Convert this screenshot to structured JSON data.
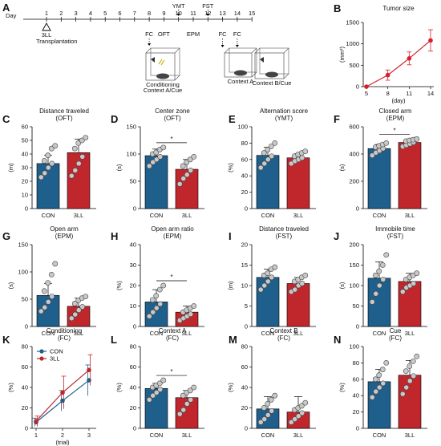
{
  "colors": {
    "con": "#1f5f8b",
    "ll": "#c0272d",
    "dot": "#c8c8c8",
    "tumor": "#d6202a"
  },
  "timeline": {
    "label": "A",
    "day_label": "Day",
    "days": [
      "1",
      "2",
      "3",
      "4",
      "5",
      "6",
      "7",
      "8",
      "9",
      "10",
      "11",
      "12",
      "13",
      "14",
      "15"
    ],
    "above": [
      {
        "day": 10,
        "text": "YMT"
      },
      {
        "day": 12,
        "text": "FST"
      }
    ],
    "below": [
      {
        "day": 8,
        "text": "FC"
      },
      {
        "day": 9,
        "text": "OFT"
      },
      {
        "day": 11,
        "text": "EPM"
      },
      {
        "day": 13,
        "text": "FC"
      },
      {
        "day": 14,
        "text": "FC"
      }
    ],
    "injection_label": "3LL",
    "injection_sub": "Transplantation",
    "boxes": [
      {
        "text1": "Conditioning",
        "text2": "Context A/Cue"
      },
      {
        "text1": "Context A",
        "text2": ""
      },
      {
        "text1": "Context B/Cue",
        "text2": ""
      }
    ]
  },
  "charts": [
    {
      "id": "B",
      "type": "line",
      "title": "Tumor size",
      "ylabel": "(mm³)",
      "xlabel": "(day)",
      "x": [
        5,
        8,
        11,
        14
      ],
      "y": [
        0,
        270,
        660,
        1080
      ],
      "err": [
        0,
        120,
        150,
        250
      ],
      "ylim": [
        0,
        1500
      ],
      "yticks": [
        "0",
        "500",
        "1000",
        "1500"
      ]
    },
    {
      "id": "C",
      "type": "bar",
      "title": "Distance traveled",
      "subtitle": "(OFT)",
      "ylabel": "(m)",
      "ylim": [
        0,
        60
      ],
      "yticks": [
        "0",
        "10",
        "20",
        "30",
        "40",
        "50",
        "60"
      ],
      "categories": [
        "CON",
        "3LL"
      ],
      "means": [
        33,
        41
      ],
      "err": [
        6,
        10
      ],
      "sig": false,
      "points": [
        [
          23,
          26,
          30,
          33,
          35,
          39,
          44,
          46
        ],
        [
          24,
          28,
          33,
          38,
          44,
          48,
          50,
          52
        ]
      ]
    },
    {
      "id": "D",
      "type": "bar",
      "title": "Center zone",
      "subtitle": "(OFT)",
      "ylabel": "(s)",
      "ylim": [
        0,
        150
      ],
      "yticks": [
        "0",
        "50",
        "100",
        "150"
      ],
      "categories": [
        "CON",
        "3LL"
      ],
      "means": [
        97,
        72
      ],
      "err": [
        12,
        18
      ],
      "sig": true,
      "sig_label": "*",
      "points": [
        [
          78,
          85,
          90,
          95,
          100,
          103,
          108,
          112
        ],
        [
          45,
          55,
          62,
          70,
          78,
          85,
          90,
          95
        ]
      ]
    },
    {
      "id": "E",
      "type": "bar",
      "title": "Alternation score",
      "subtitle": "(YMT)",
      "ylabel": "(%)",
      "ylim": [
        0,
        100
      ],
      "yticks": [
        "0",
        "20",
        "40",
        "60",
        "80",
        "100"
      ],
      "categories": [
        "CON",
        "3LL"
      ],
      "means": [
        65,
        62
      ],
      "err": [
        10,
        5
      ],
      "sig": false,
      "points": [
        [
          50,
          55,
          60,
          64,
          68,
          72,
          76,
          80
        ],
        [
          55,
          58,
          60,
          62,
          64,
          66,
          68,
          70
        ]
      ]
    },
    {
      "id": "F",
      "type": "bar",
      "title": "Closed arm",
      "subtitle": "(EPM)",
      "ylabel": "(s)",
      "ylim": [
        0,
        600
      ],
      "yticks": [
        "0",
        "200",
        "400",
        "600"
      ],
      "categories": [
        "CON",
        "3LL"
      ],
      "means": [
        440,
        485
      ],
      "err": [
        30,
        25
      ],
      "sig": true,
      "sig_label": "*",
      "points": [
        [
          390,
          410,
          425,
          440,
          450,
          460,
          470,
          480
        ],
        [
          455,
          465,
          475,
          485,
          495,
          500,
          505,
          510
        ]
      ]
    },
    {
      "id": "G",
      "type": "bar",
      "title": "Open arm",
      "subtitle": "(EPM)",
      "ylabel": "(s)",
      "ylim": [
        0,
        150
      ],
      "yticks": [
        "0",
        "50",
        "100",
        "150"
      ],
      "categories": [
        "CON",
        "3LL"
      ],
      "means": [
        57,
        37
      ],
      "err": [
        22,
        15
      ],
      "sig": false,
      "points": [
        [
          28,
          35,
          45,
          55,
          65,
          80,
          95,
          115
        ],
        [
          15,
          22,
          30,
          36,
          42,
          48,
          52,
          55
        ]
      ]
    },
    {
      "id": "H",
      "type": "bar",
      "title": "Open arm ratio",
      "subtitle": "(EPM)",
      "ylabel": "(%)",
      "ylim": [
        0,
        40
      ],
      "yticks": [
        "0",
        "10",
        "20",
        "30",
        "40"
      ],
      "categories": [
        "CON",
        "3LL"
      ],
      "means": [
        12,
        7
      ],
      "err": [
        6,
        3
      ],
      "sig": true,
      "sig_label": "*",
      "points": [
        [
          5,
          7,
          9,
          11,
          13,
          15,
          18,
          20
        ],
        [
          3,
          4,
          5,
          6,
          7,
          8,
          9,
          10
        ]
      ]
    },
    {
      "id": "I",
      "type": "bar",
      "title": "Distance  traveled",
      "subtitle": "(FST)",
      "ylabel": "(m)",
      "ylim": [
        0,
        20
      ],
      "yticks": [
        "0",
        "5",
        "10",
        "15",
        "20"
      ],
      "categories": [
        "CON",
        "3LL"
      ],
      "means": [
        12,
        10.5
      ],
      "err": [
        2,
        1.5
      ],
      "sig": false,
      "points": [
        [
          9,
          10,
          11,
          12,
          12.5,
          13,
          14,
          14.5
        ],
        [
          8.5,
          9,
          10,
          10.5,
          11,
          11.5,
          12,
          12.5
        ]
      ]
    },
    {
      "id": "J",
      "type": "bar",
      "title": "Immobile time",
      "subtitle": "(FST)",
      "ylabel": "(s)",
      "ylim": [
        0,
        200
      ],
      "yticks": [
        "0",
        "50",
        "100",
        "150",
        "200"
      ],
      "categories": [
        "CON",
        "3LL"
      ],
      "means": [
        118,
        110
      ],
      "err": [
        40,
        20
      ],
      "sig": false,
      "points": [
        [
          60,
          80,
          100,
          115,
          125,
          135,
          150,
          175
        ],
        [
          85,
          95,
          100,
          105,
          115,
          120,
          125,
          130
        ]
      ]
    },
    {
      "id": "K",
      "type": "line",
      "title": "Conditioning",
      "subtitle": "(FC)",
      "ylabel": "(%)",
      "xlabel": "(trial)",
      "x": [
        1,
        2,
        3
      ],
      "ylim": [
        0,
        80
      ],
      "yticks": [
        "0",
        "20",
        "40",
        "60",
        "80"
      ],
      "series": [
        {
          "name": "CON",
          "y": [
            6,
            27,
            47
          ],
          "err": [
            4,
            10,
            15
          ]
        },
        {
          "name": "3LL",
          "y": [
            7,
            35,
            57
          ],
          "err": [
            5,
            16,
            15
          ]
        }
      ]
    },
    {
      "id": "L",
      "type": "bar",
      "title": "Context A",
      "subtitle": "(FC)",
      "ylabel": "(%)",
      "ylim": [
        0,
        80
      ],
      "yticks": [
        "0",
        "20",
        "40",
        "60",
        "80"
      ],
      "categories": [
        "CON",
        "3LL"
      ],
      "means": [
        39,
        30
      ],
      "err": [
        5,
        7
      ],
      "sig": true,
      "sig_label": "*",
      "points": [
        [
          28,
          32,
          35,
          38,
          40,
          42,
          44,
          47
        ],
        [
          14,
          18,
          24,
          28,
          32,
          35,
          37,
          40
        ]
      ]
    },
    {
      "id": "M",
      "type": "bar",
      "title": "Context B",
      "subtitle": "(FC)",
      "ylabel": "(%)",
      "ylim": [
        0,
        80
      ],
      "yticks": [
        "0",
        "20",
        "40",
        "60",
        "80"
      ],
      "categories": [
        "CON",
        "3LL"
      ],
      "means": [
        19,
        16
      ],
      "err": [
        12,
        15
      ],
      "sig": false,
      "points": [
        [
          6,
          9,
          13,
          17,
          20,
          24,
          28,
          32
        ],
        [
          6,
          9,
          12,
          15,
          18,
          20,
          22,
          25
        ]
      ]
    },
    {
      "id": "N",
      "type": "bar",
      "title": "Cue",
      "subtitle": "(FC)",
      "ylabel": "(%)",
      "ylim": [
        0,
        100
      ],
      "yticks": [
        "0",
        "20",
        "40",
        "60",
        "80",
        "100"
      ],
      "categories": [
        "CON",
        "3LL"
      ],
      "means": [
        57,
        65
      ],
      "err": [
        15,
        18
      ],
      "sig": false,
      "points": [
        [
          38,
          45,
          50,
          55,
          60,
          65,
          72,
          80
        ],
        [
          42,
          50,
          58,
          64,
          70,
          76,
          82,
          88
        ]
      ]
    }
  ]
}
